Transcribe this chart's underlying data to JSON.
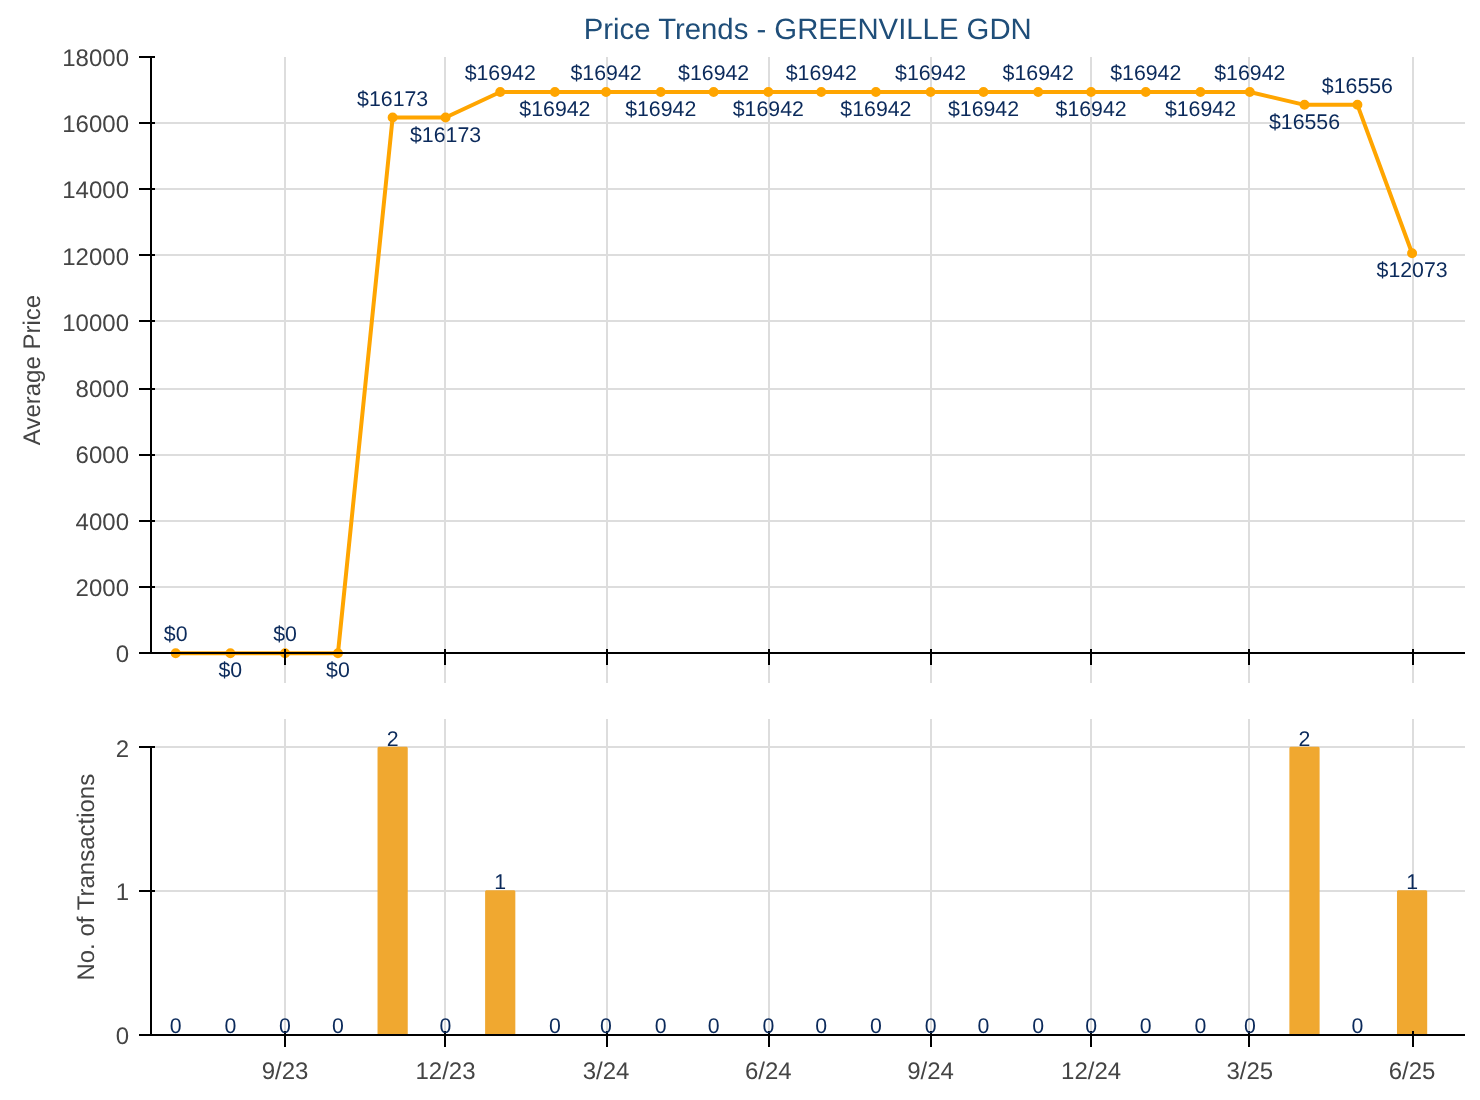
{
  "chart_data": [
    {
      "type": "line",
      "title": "Price Trends - GREENVILLE GDN",
      "ylabel": "Average Price",
      "x": [
        "2023-07",
        "2023-08",
        "2023-09",
        "2023-10",
        "2023-11",
        "2023-12",
        "2024-01",
        "2024-02",
        "2024-03",
        "2024-04",
        "2024-05",
        "2024-06",
        "2024-07",
        "2024-08",
        "2024-09",
        "2024-10",
        "2024-11",
        "2024-12",
        "2025-01",
        "2025-02",
        "2025-03",
        "2025-04",
        "2025-05",
        "2025-06"
      ],
      "series": [
        {
          "color": "#ffa500",
          "values": [
            0,
            0,
            0,
            0,
            16173,
            16173,
            16942,
            16942,
            16942,
            16942,
            16942,
            16942,
            16942,
            16942,
            16942,
            16942,
            16942,
            16942,
            16942,
            16942,
            16942,
            16556,
            16556,
            12073
          ],
          "value_labels": [
            "$0",
            "$0",
            "$0",
            "$0",
            "$16173",
            "$16173",
            "$16942",
            "$16942",
            "$16942",
            "$16942",
            "$16942",
            "$16942",
            "$16942",
            "$16942",
            "$16942",
            "$16942",
            "$16942",
            "$16942",
            "$16942",
            "$16942",
            "$16942",
            "$16556",
            "$16556",
            "$12073"
          ]
        }
      ],
      "xlim": [
        "2023-06-17",
        "2025-07-01"
      ],
      "xticks": [
        {
          "value": "2023-09",
          "label": null
        },
        {
          "value": "2023-12",
          "label": null
        },
        {
          "value": "2024-03",
          "label": null
        },
        {
          "value": "2024-06",
          "label": null
        },
        {
          "value": "2024-09",
          "label": null
        },
        {
          "value": "2024-12",
          "label": null
        },
        {
          "value": "2025-03",
          "label": null
        },
        {
          "value": "2025-06",
          "label": null
        }
      ],
      "ylim": [
        0,
        18000
      ],
      "yticks": [
        0,
        2000,
        4000,
        6000,
        8000,
        10000,
        12000,
        14000,
        16000,
        18000
      ],
      "grid": true,
      "marker": "circle",
      "line_style": "solid",
      "tick_labels": "y"
    },
    {
      "type": "bar",
      "ylabel": "No. of Transactions",
      "x": [
        "2023-07",
        "2023-08",
        "2023-09",
        "2023-10",
        "2023-11",
        "2023-12",
        "2024-01",
        "2024-02",
        "2024-03",
        "2024-04",
        "2024-05",
        "2024-06",
        "2024-07",
        "2024-08",
        "2024-09",
        "2024-10",
        "2024-11",
        "2024-12",
        "2025-01",
        "2025-02",
        "2025-03",
        "2025-04",
        "2025-05",
        "2025-06"
      ],
      "series": [
        {
          "color": "#f0a830",
          "values": [
            0,
            0,
            0,
            0,
            2,
            0,
            1,
            0,
            0,
            0,
            0,
            0,
            0,
            0,
            0,
            0,
            0,
            0,
            0,
            0,
            0,
            2,
            0,
            1
          ]
        }
      ],
      "xlim": [
        "2023-06-17",
        "2025-07-01"
      ],
      "xticks": [
        {
          "value": "2023-09",
          "label": "9/23"
        },
        {
          "value": "2023-12",
          "label": "12/23"
        },
        {
          "value": "2024-03",
          "label": "3/24"
        },
        {
          "value": "2024-06",
          "label": "6/24"
        },
        {
          "value": "2024-09",
          "label": "9/24"
        },
        {
          "value": "2024-12",
          "label": "12/24"
        },
        {
          "value": "2025-03",
          "label": "3/25"
        },
        {
          "value": "2025-06",
          "label": "6/25"
        }
      ],
      "ylim": [
        0,
        2
      ],
      "yticks": [
        0,
        1,
        2
      ],
      "grid": true,
      "data_labels": true
    }
  ]
}
